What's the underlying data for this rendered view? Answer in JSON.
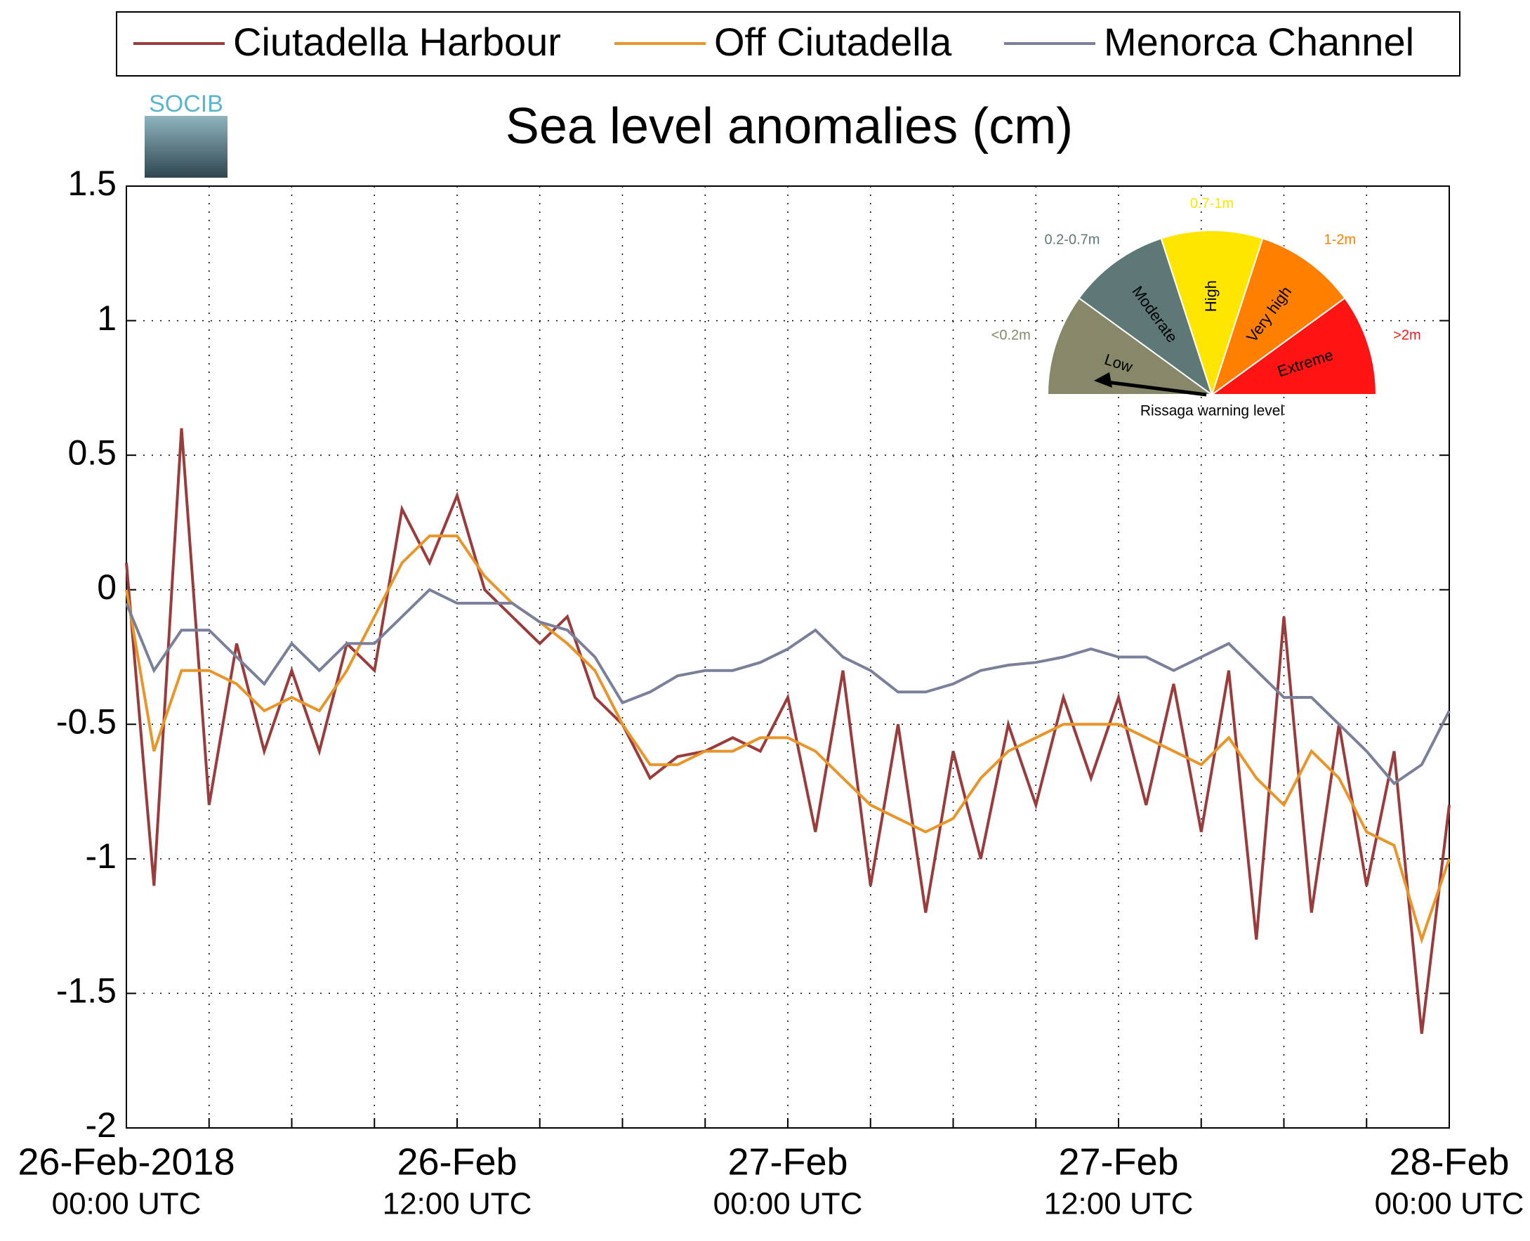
{
  "chart_data": {
    "type": "line",
    "title": "Sea level anomalies (cm)",
    "logo": "SOCIB",
    "x": [
      "2018-02-26T00:00",
      "2018-02-26T01:00",
      "2018-02-26T02:00",
      "2018-02-26T03:00",
      "2018-02-26T04:00",
      "2018-02-26T05:00",
      "2018-02-26T06:00",
      "2018-02-26T07:00",
      "2018-02-26T08:00",
      "2018-02-26T09:00",
      "2018-02-26T10:00",
      "2018-02-26T11:00",
      "2018-02-26T12:00",
      "2018-02-26T13:00",
      "2018-02-26T14:00",
      "2018-02-26T15:00",
      "2018-02-26T16:00",
      "2018-02-26T17:00",
      "2018-02-26T18:00",
      "2018-02-26T19:00",
      "2018-02-26T20:00",
      "2018-02-26T21:00",
      "2018-02-26T22:00",
      "2018-02-26T23:00",
      "2018-02-27T00:00",
      "2018-02-27T01:00",
      "2018-02-27T02:00",
      "2018-02-27T03:00",
      "2018-02-27T04:00",
      "2018-02-27T05:00",
      "2018-02-27T06:00",
      "2018-02-27T07:00",
      "2018-02-27T08:00",
      "2018-02-27T09:00",
      "2018-02-27T10:00",
      "2018-02-27T11:00",
      "2018-02-27T12:00",
      "2018-02-27T13:00",
      "2018-02-27T14:00",
      "2018-02-27T15:00",
      "2018-02-27T16:00",
      "2018-02-27T17:00",
      "2018-02-27T18:00",
      "2018-02-27T19:00",
      "2018-02-27T20:00",
      "2018-02-27T21:00",
      "2018-02-27T22:00",
      "2018-02-27T23:00",
      "2018-02-28T00:00"
    ],
    "series": [
      {
        "name": "Ciutadella Harbour",
        "color": "#9b3c3c",
        "values": [
          0.1,
          -1.1,
          0.6,
          -0.8,
          -0.2,
          -0.6,
          -0.3,
          -0.6,
          -0.2,
          -0.3,
          0.3,
          0.1,
          0.35,
          0.0,
          -0.1,
          -0.2,
          -0.1,
          -0.4,
          -0.5,
          -0.7,
          -0.62,
          -0.6,
          -0.55,
          -0.6,
          -0.4,
          -0.9,
          -0.3,
          -1.1,
          -0.5,
          -1.2,
          -0.6,
          -1.0,
          -0.5,
          -0.8,
          -0.4,
          -0.7,
          -0.4,
          -0.8,
          -0.35,
          -0.9,
          -0.3,
          -1.3,
          -0.1,
          -1.2,
          -0.5,
          -1.1,
          -0.6,
          -1.65,
          -0.8
        ]
      },
      {
        "name": "Off Ciutadella",
        "color": "#e8952a",
        "values": [
          0.0,
          -0.6,
          -0.3,
          -0.3,
          -0.35,
          -0.45,
          -0.4,
          -0.45,
          -0.3,
          -0.1,
          0.1,
          0.2,
          0.2,
          0.05,
          -0.05,
          -0.12,
          -0.2,
          -0.3,
          -0.5,
          -0.65,
          -0.65,
          -0.6,
          -0.6,
          -0.55,
          -0.55,
          -0.6,
          -0.7,
          -0.8,
          -0.85,
          -0.9,
          -0.85,
          -0.7,
          -0.6,
          -0.55,
          -0.5,
          -0.5,
          -0.5,
          -0.55,
          -0.6,
          -0.65,
          -0.55,
          -0.7,
          -0.8,
          -0.6,
          -0.7,
          -0.9,
          -0.95,
          -1.3,
          -1.0
        ]
      },
      {
        "name": "Menorca Channel",
        "color": "#7a809a",
        "values": [
          -0.05,
          -0.3,
          -0.15,
          -0.15,
          -0.25,
          -0.35,
          -0.2,
          -0.3,
          -0.2,
          -0.2,
          -0.1,
          0.0,
          -0.05,
          -0.05,
          -0.05,
          -0.12,
          -0.15,
          -0.25,
          -0.42,
          -0.38,
          -0.32,
          -0.3,
          -0.3,
          -0.27,
          -0.22,
          -0.15,
          -0.25,
          -0.3,
          -0.38,
          -0.38,
          -0.35,
          -0.3,
          -0.28,
          -0.27,
          -0.25,
          -0.22,
          -0.25,
          -0.25,
          -0.3,
          -0.25,
          -0.2,
          -0.3,
          -0.4,
          -0.4,
          -0.5,
          -0.6,
          -0.72,
          -0.65,
          -0.45
        ]
      }
    ],
    "xlim": [
      "2018-02-26T00:00",
      "2018-02-28T00:00"
    ],
    "xticks": [
      {
        "value": "2018-02-26T00:00",
        "label": [
          "26-Feb-2018",
          "00:00 UTC"
        ]
      },
      {
        "value": "2018-02-26T03:00",
        "label": null
      },
      {
        "value": "2018-02-26T06:00",
        "label": null
      },
      {
        "value": "2018-02-26T09:00",
        "label": null
      },
      {
        "value": "2018-02-26T12:00",
        "label": [
          "26-Feb",
          "12:00 UTC"
        ]
      },
      {
        "value": "2018-02-26T15:00",
        "label": null
      },
      {
        "value": "2018-02-26T18:00",
        "label": null
      },
      {
        "value": "2018-02-26T21:00",
        "label": null
      },
      {
        "value": "2018-02-27T00:00",
        "label": [
          "27-Feb",
          "00:00 UTC"
        ]
      },
      {
        "value": "2018-02-27T03:00",
        "label": null
      },
      {
        "value": "2018-02-27T06:00",
        "label": null
      },
      {
        "value": "2018-02-27T09:00",
        "label": null
      },
      {
        "value": "2018-02-27T12:00",
        "label": [
          "27-Feb",
          "12:00 UTC"
        ]
      },
      {
        "value": "2018-02-27T15:00",
        "label": null
      },
      {
        "value": "2018-02-27T18:00",
        "label": null
      },
      {
        "value": "2018-02-27T21:00",
        "label": null
      },
      {
        "value": "2018-02-28T00:00",
        "label": [
          "28-Feb",
          "00:00 UTC"
        ]
      }
    ],
    "ylim": [
      -2,
      1.5
    ],
    "yticks": [
      -2,
      -1.5,
      -1,
      -0.5,
      0,
      0.5,
      1,
      1.5
    ],
    "grid": true,
    "gauge": {
      "caption": "Rissaga warning level",
      "sectors": [
        {
          "label": "Low",
          "range": "<0.2m",
          "color": "#87876a"
        },
        {
          "label": "Moderate",
          "range": "0.2-0.7m",
          "color": "#5e7878"
        },
        {
          "label": "High",
          "range": "0.7-1m",
          "color": "#ffe600"
        },
        {
          "label": "Very high",
          "range": "1-2m",
          "color": "#ff8000"
        },
        {
          "label": "Extreme",
          "range": ">2m",
          "color": "#ff1414"
        }
      ]
    }
  }
}
